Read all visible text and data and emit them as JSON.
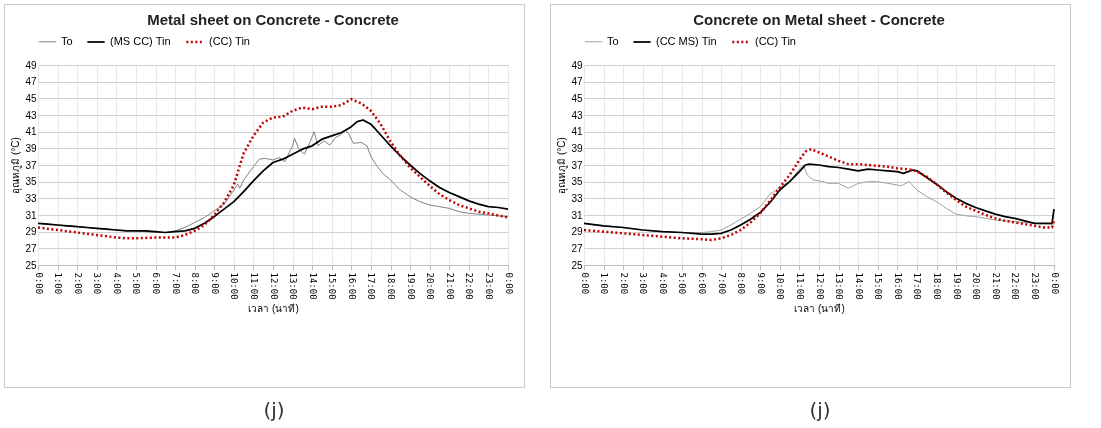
{
  "chart_data": [
    {
      "type": "line",
      "title": "Metal sheet on Concrete - Concrete",
      "xlabel": "เวลา (นาที)",
      "ylabel": "อุณหภูมิ (°C)",
      "annotations": [
        "(j)"
      ],
      "legend": "top",
      "grid": true,
      "xlim": [
        0,
        24
      ],
      "xticks": [
        {
          "value": 0,
          "label": "0:00"
        },
        {
          "value": 1,
          "label": "1:00"
        },
        {
          "value": 2,
          "label": "2:00"
        },
        {
          "value": 3,
          "label": "3:00"
        },
        {
          "value": 4,
          "label": "4:00"
        },
        {
          "value": 5,
          "label": "5:00"
        },
        {
          "value": 6,
          "label": "6:00"
        },
        {
          "value": 7,
          "label": "7:00"
        },
        {
          "value": 8,
          "label": "8:00"
        },
        {
          "value": 9,
          "label": "9:00"
        },
        {
          "value": 10,
          "label": "10:00"
        },
        {
          "value": 11,
          "label": "11:00"
        },
        {
          "value": 12,
          "label": "12:00"
        },
        {
          "value": 13,
          "label": "13:00"
        },
        {
          "value": 14,
          "label": "14:00"
        },
        {
          "value": 15,
          "label": "15:00"
        },
        {
          "value": 16,
          "label": "16:00"
        },
        {
          "value": 17,
          "label": "17:00"
        },
        {
          "value": 18,
          "label": "18:00"
        },
        {
          "value": 19,
          "label": "19:00"
        },
        {
          "value": 20,
          "label": "20:00"
        },
        {
          "value": 21,
          "label": "21:00"
        },
        {
          "value": 22,
          "label": "22:00"
        },
        {
          "value": 23,
          "label": "23:00"
        },
        {
          "value": 24,
          "label": "0:00"
        }
      ],
      "ylim": [
        25,
        49
      ],
      "yticks": [
        25,
        27,
        29,
        31,
        33,
        35,
        37,
        39,
        41,
        43,
        45,
        47,
        49
      ],
      "series": [
        {
          "name": "To",
          "color": "#808080",
          "line_style": "solid",
          "x": [
            0,
            1,
            2,
            3,
            4,
            5,
            6,
            6.5,
            7,
            7.5,
            8,
            8.5,
            9,
            9.5,
            10,
            10.2,
            10.3,
            10.5,
            11,
            11.3,
            11.6,
            12,
            12.3,
            12.6,
            13,
            13.1,
            13.3,
            13.6,
            13.9,
            14.1,
            14.3,
            14.6,
            14.9,
            15.2,
            15.5,
            15.7,
            15.9,
            16.1,
            16.5,
            16.8,
            17,
            17.3,
            17.6,
            18,
            18.5,
            19,
            19.5,
            20,
            20.5,
            21,
            21.5,
            22,
            23,
            24
          ],
          "values": [
            30.0,
            29.8,
            29.6,
            29.4,
            29.2,
            29.1,
            28.9,
            28.9,
            29.1,
            29.5,
            30.1,
            30.7,
            31.5,
            32.3,
            34.0,
            34.7,
            34.2,
            35.2,
            36.8,
            37.7,
            37.8,
            37.6,
            37.9,
            37.4,
            39.3,
            40.2,
            39.0,
            38.3,
            39.8,
            41.0,
            39.3,
            39.9,
            39.4,
            40.3,
            40.7,
            41.2,
            40.6,
            39.6,
            39.7,
            39.3,
            38.0,
            36.9,
            36.0,
            35.2,
            34.0,
            33.2,
            32.6,
            32.2,
            32.0,
            31.8,
            31.4,
            31.2,
            31.0,
            30.8
          ]
        },
        {
          "name": "(MS CC) Tin",
          "color": "#000000",
          "line_style": "solid",
          "x": [
            0,
            0.5,
            1,
            1.5,
            2,
            2.5,
            3,
            3.5,
            4,
            4.5,
            5,
            5.5,
            6,
            6.5,
            7,
            7.5,
            8,
            8.5,
            9,
            9.5,
            10,
            10.5,
            11,
            11.5,
            12,
            12.5,
            13,
            13.5,
            14,
            14.5,
            15,
            15.5,
            16,
            16.3,
            16.6,
            17,
            17.5,
            18,
            18.5,
            19,
            19.5,
            20,
            20.5,
            21,
            21.5,
            22,
            22.5,
            23,
            23.5,
            24
          ],
          "values": [
            30.0,
            29.9,
            29.8,
            29.7,
            29.6,
            29.5,
            29.4,
            29.3,
            29.2,
            29.1,
            29.1,
            29.1,
            29.0,
            28.9,
            29.0,
            29.1,
            29.4,
            30.0,
            30.8,
            31.7,
            32.6,
            33.8,
            35.1,
            36.3,
            37.3,
            37.7,
            38.3,
            38.9,
            39.3,
            40.1,
            40.5,
            40.9,
            41.6,
            42.2,
            42.4,
            41.9,
            40.6,
            39.3,
            38.1,
            37.0,
            36.0,
            35.1,
            34.3,
            33.7,
            33.2,
            32.7,
            32.3,
            32.0,
            31.9,
            31.7
          ]
        },
        {
          "name": "(CC) Tin",
          "color": "#c00000",
          "line_style": "dotted",
          "x": [
            0,
            1,
            2,
            3,
            4,
            4.5,
            5,
            6,
            6.5,
            7,
            7.5,
            8,
            8.5,
            9,
            9.5,
            10,
            10.5,
            11,
            11.5,
            12,
            12.5,
            13,
            13.5,
            14,
            14.5,
            15,
            15.5,
            16,
            16.5,
            17,
            17.5,
            18,
            18.5,
            19,
            19.5,
            20,
            20.5,
            21,
            21.5,
            22,
            22.5,
            23,
            24
          ],
          "values": [
            29.5,
            29.2,
            28.9,
            28.6,
            28.3,
            28.2,
            28.2,
            28.3,
            28.3,
            28.3,
            28.6,
            29.1,
            29.8,
            31.0,
            32.5,
            34.6,
            38.4,
            40.5,
            42.1,
            42.7,
            42.8,
            43.5,
            43.9,
            43.7,
            44.0,
            44.0,
            44.2,
            44.9,
            44.4,
            43.5,
            41.9,
            39.8,
            38.1,
            36.7,
            35.6,
            34.5,
            33.5,
            32.8,
            32.2,
            31.8,
            31.4,
            31.2,
            30.7
          ]
        }
      ]
    },
    {
      "type": "line",
      "title": "Concrete on Metal sheet - Concrete",
      "xlabel": "เวลา (นาที)",
      "ylabel": "อุณหภูมิ (°C)",
      "annotations": [
        "(j)"
      ],
      "legend": "top",
      "grid": true,
      "xlim": [
        0,
        24
      ],
      "xticks": [
        {
          "value": 0,
          "label": "0:00"
        },
        {
          "value": 1,
          "label": "1:00"
        },
        {
          "value": 2,
          "label": "2:00"
        },
        {
          "value": 3,
          "label": "3:00"
        },
        {
          "value": 4,
          "label": "4:00"
        },
        {
          "value": 5,
          "label": "5:00"
        },
        {
          "value": 6,
          "label": "6:00"
        },
        {
          "value": 7,
          "label": "7:00"
        },
        {
          "value": 8,
          "label": "8:00"
        },
        {
          "value": 9,
          "label": "9:00"
        },
        {
          "value": 10,
          "label": "10:00"
        },
        {
          "value": 11,
          "label": "11:00"
        },
        {
          "value": 12,
          "label": "12:00"
        },
        {
          "value": 13,
          "label": "13:00"
        },
        {
          "value": 14,
          "label": "14:00"
        },
        {
          "value": 15,
          "label": "15:00"
        },
        {
          "value": 16,
          "label": "16:00"
        },
        {
          "value": 17,
          "label": "17:00"
        },
        {
          "value": 18,
          "label": "18:00"
        },
        {
          "value": 19,
          "label": "19:00"
        },
        {
          "value": 20,
          "label": "20:00"
        },
        {
          "value": 21,
          "label": "21:00"
        },
        {
          "value": 22,
          "label": "22:00"
        },
        {
          "value": 23,
          "label": "23:00"
        },
        {
          "value": 24,
          "label": "0:00"
        }
      ],
      "ylim": [
        25,
        49
      ],
      "yticks": [
        25,
        27,
        29,
        31,
        33,
        35,
        37,
        39,
        41,
        43,
        45,
        47,
        49
      ],
      "series": [
        {
          "name": "To",
          "color": "#a0a0a0",
          "line_style": "solid",
          "x": [
            0,
            1,
            2,
            3,
            4,
            5,
            6,
            6.5,
            7,
            7.5,
            8,
            8.5,
            9,
            9.5,
            10,
            10.5,
            11,
            11.2,
            11.4,
            11.7,
            12,
            12.5,
            13,
            13.5,
            14,
            14.5,
            15,
            15.5,
            16,
            16.2,
            16.6,
            17,
            17.5,
            18,
            18.5,
            19,
            19.5,
            20,
            20.5,
            21,
            22,
            23,
            24
          ],
          "values": [
            30.0,
            29.7,
            29.5,
            29.2,
            29.0,
            28.9,
            28.9,
            29.0,
            29.2,
            29.8,
            30.5,
            31.2,
            32.0,
            33.5,
            34.3,
            35.0,
            36.5,
            37.0,
            35.8,
            35.2,
            35.1,
            34.8,
            34.8,
            34.2,
            34.8,
            35.0,
            35.0,
            34.8,
            34.6,
            34.5,
            35.0,
            34.0,
            33.2,
            32.6,
            31.8,
            31.1,
            30.9,
            30.8,
            30.6,
            30.4,
            30.2,
            30.0,
            29.9
          ]
        },
        {
          "name": "(CC MS) Tin",
          "color": "#000000",
          "line_style": "solid",
          "x": [
            0,
            1,
            2,
            3,
            4,
            5,
            6,
            6.5,
            7,
            7.5,
            8,
            8.5,
            9,
            9.5,
            10,
            10.5,
            11,
            11.3,
            11.5,
            12,
            12.5,
            13,
            13.5,
            14,
            14.5,
            15,
            15.5,
            16,
            16.3,
            16.8,
            17,
            17.5,
            18,
            18.5,
            19,
            19.5,
            20,
            20.5,
            21,
            21.5,
            22,
            22.5,
            23,
            23.5,
            23.9,
            24
          ],
          "values": [
            30.0,
            29.7,
            29.5,
            29.2,
            29.0,
            28.9,
            28.7,
            28.7,
            28.8,
            29.2,
            29.8,
            30.5,
            31.3,
            32.5,
            34.0,
            35.0,
            36.2,
            37.0,
            37.1,
            37.0,
            36.8,
            36.7,
            36.5,
            36.3,
            36.5,
            36.4,
            36.3,
            36.2,
            36.0,
            36.4,
            36.3,
            35.5,
            34.7,
            33.8,
            33.0,
            32.4,
            31.9,
            31.5,
            31.1,
            30.8,
            30.6,
            30.3,
            30.0,
            30.0,
            30.0,
            31.7
          ]
        },
        {
          "name": "(CC) Tin",
          "color": "#c00000",
          "line_style": "dotted",
          "x": [
            0,
            1,
            2,
            3,
            4,
            5,
            6,
            6.5,
            7,
            7.5,
            8,
            8.5,
            9,
            9.5,
            10,
            10.5,
            11,
            11.3,
            11.6,
            12,
            12.5,
            13,
            13.5,
            14,
            14.5,
            15,
            15.5,
            16,
            16.5,
            16.8,
            17,
            17.5,
            18,
            18.5,
            19,
            19.5,
            20,
            20.5,
            21,
            21.5,
            22,
            22.5,
            23,
            23.5,
            23.9,
            24
          ],
          "values": [
            29.2,
            29.0,
            28.8,
            28.6,
            28.4,
            28.2,
            28.1,
            28.0,
            28.2,
            28.6,
            29.2,
            30.1,
            31.2,
            32.7,
            34.3,
            35.8,
            37.6,
            38.6,
            38.9,
            38.5,
            38.0,
            37.5,
            37.1,
            37.1,
            37.0,
            36.9,
            36.8,
            36.6,
            36.5,
            36.4,
            36.2,
            35.6,
            34.7,
            33.7,
            32.8,
            32.0,
            31.5,
            31.0,
            30.6,
            30.3,
            30.1,
            29.9,
            29.7,
            29.5,
            29.5,
            30.3
          ]
        }
      ]
    }
  ]
}
